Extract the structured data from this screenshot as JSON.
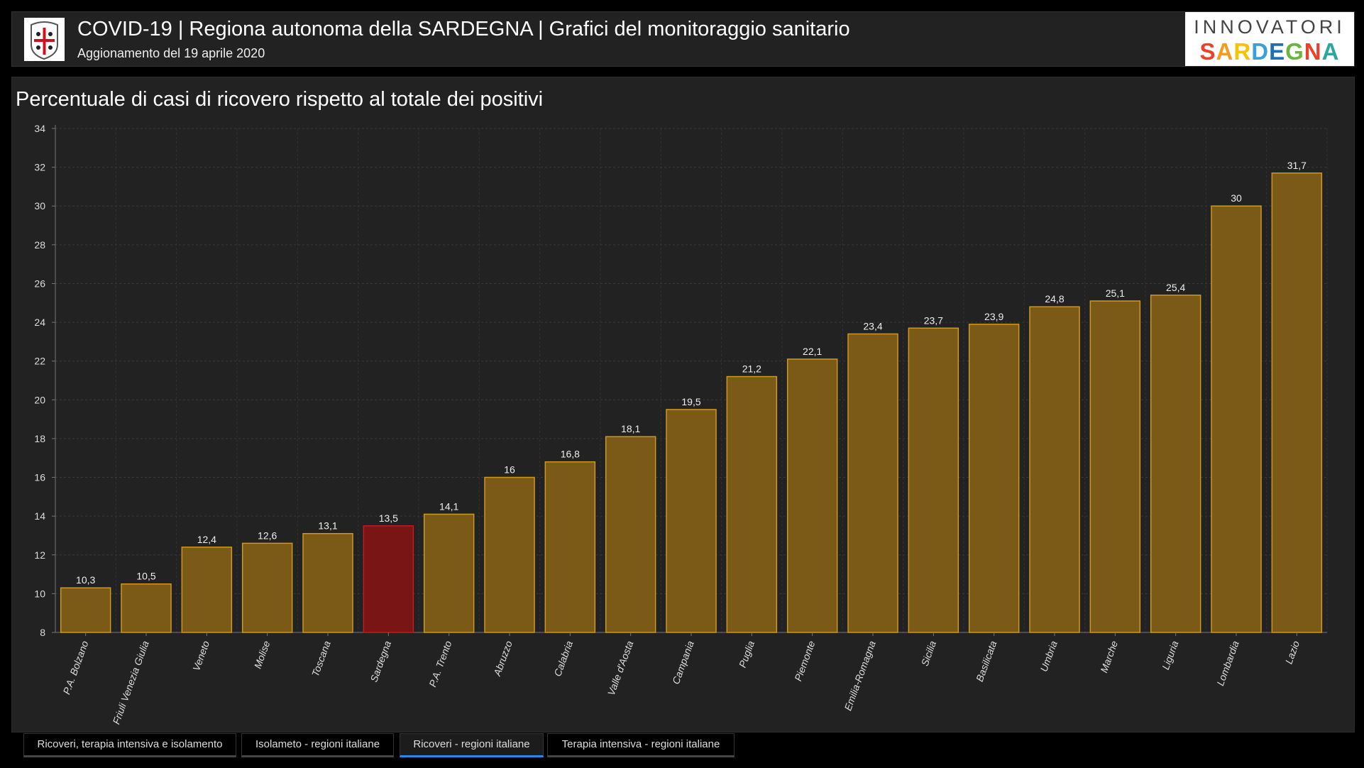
{
  "header": {
    "title": "COVID-19 | Regiona autonoma della SARDEGNA | Grafici del monitoraggio sanitario",
    "subtitle": "Aggionamento del 19 aprile 2020",
    "logo_line1": "INNOVATORI",
    "logo_line2": "SARDEGNA"
  },
  "tabs": [
    {
      "label": "Ricoveri, terapia intensiva e isolamento",
      "active": false
    },
    {
      "label": "Isolameto - regioni italiane",
      "active": false
    },
    {
      "label": "Ricoveri - regioni italiane",
      "active": true
    },
    {
      "label": "Terapia intensiva - regioni italiane",
      "active": false
    }
  ],
  "colors": {
    "bar_fill": "#7b5a17",
    "bar_border": "#d0971c",
    "highlight_fill": "#7a1515",
    "highlight_border": "#c41a1a"
  },
  "chart_data": {
    "type": "bar",
    "title": "Percentuale di casi di ricovero rispetto al totale dei positivi",
    "xlabel": "",
    "ylabel": "",
    "ylim": [
      8,
      34
    ],
    "yticks": [
      8,
      10,
      12,
      14,
      16,
      18,
      20,
      22,
      24,
      26,
      28,
      30,
      32,
      34
    ],
    "grid": true,
    "highlight": "Sardegna",
    "categories": [
      "P.A. Bolzano",
      "Friuli Venezia Giulia",
      "Veneto",
      "Molise",
      "Toscana",
      "Sardegna",
      "P.A. Trento",
      "Abruzzo",
      "Calabria",
      "Valle d'Aosta",
      "Campania",
      "Puglia",
      "Piemonte",
      "Emilia-Romagna",
      "Sicilia",
      "Basilicata",
      "Umbria",
      "Marche",
      "Liguria",
      "Lombardia",
      "Lazio"
    ],
    "values": [
      10.3,
      10.5,
      12.4,
      12.6,
      13.1,
      13.5,
      14.1,
      16,
      16.8,
      18.1,
      19.5,
      21.2,
      22.1,
      23.4,
      23.7,
      23.9,
      24.8,
      25.1,
      25.4,
      30,
      31.7
    ],
    "value_labels": [
      "10,3",
      "10,5",
      "12,4",
      "12,6",
      "13,1",
      "13,5",
      "14,1",
      "16",
      "16,8",
      "18,1",
      "19,5",
      "21,2",
      "22,1",
      "23,4",
      "23,7",
      "23,9",
      "24,8",
      "25,1",
      "25,4",
      "30",
      "31,7"
    ]
  }
}
